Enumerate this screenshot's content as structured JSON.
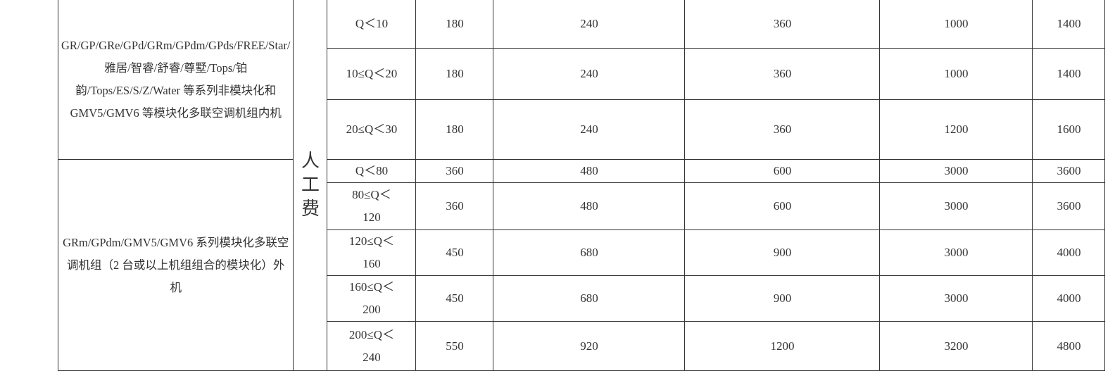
{
  "category_label": "人工费",
  "groups": [
    {
      "description": "GR/GP/GRe/GPd/GRm/GPdm/GPds/FREE/Star/雅居/智睿/舒睿/尊墅/Tops/铂韵/Tops/ES/S/Z/Water 等系列非模块化和GMV5/GMV6 等模块化多联空调机组内机",
      "rows": [
        {
          "range": "Q＜10",
          "values": [
            "180",
            "240",
            "360",
            "1000",
            "1400"
          ]
        },
        {
          "range": "10≤Q＜20",
          "values": [
            "180",
            "240",
            "360",
            "1000",
            "1400"
          ]
        },
        {
          "range": "20≤Q＜30",
          "values": [
            "180",
            "240",
            "360",
            "1200",
            "1600"
          ]
        }
      ]
    },
    {
      "description": "GRm/GPdm/GMV5/GMV6 系列模块化多联空调机组（2 台或以上机组组合的模块化）外机",
      "rows": [
        {
          "range": "Q＜80",
          "values": [
            "360",
            "480",
            "600",
            "3000",
            "3600"
          ]
        },
        {
          "range": "80≤Q＜120",
          "values": [
            "360",
            "480",
            "600",
            "3000",
            "3600"
          ]
        },
        {
          "range": "120≤Q＜160",
          "values": [
            "450",
            "680",
            "900",
            "3000",
            "4000"
          ]
        },
        {
          "range": "160≤Q＜200",
          "values": [
            "450",
            "680",
            "900",
            "3000",
            "4000"
          ]
        },
        {
          "range": "200≤Q＜240",
          "values": [
            "550",
            "920",
            "1200",
            "3200",
            "4800"
          ]
        }
      ]
    }
  ]
}
